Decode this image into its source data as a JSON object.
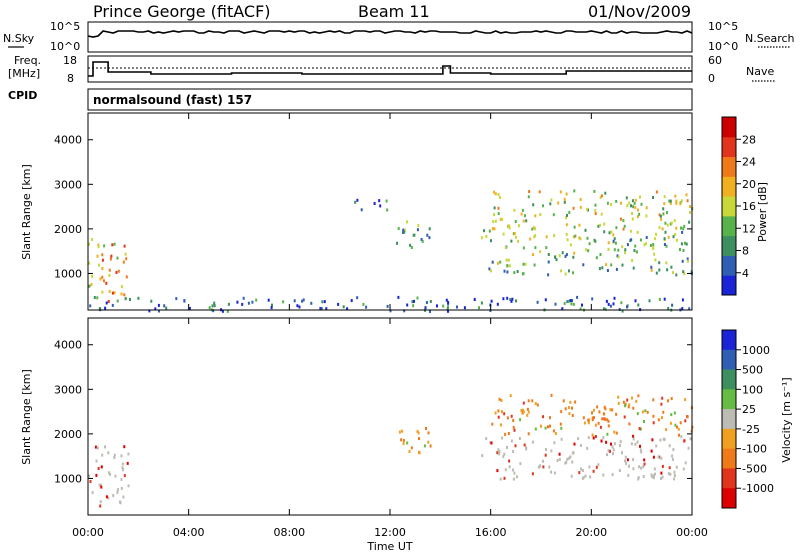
{
  "header": {
    "station": "Prince George (fitACF)",
    "beam": "Beam 11",
    "date": "01/Nov/2009"
  },
  "panel_labels": {
    "nsky": "N.Sky",
    "nsearch": "N.Search",
    "freq": "Freq.",
    "freq_unit": "[MHz]",
    "cpid": "CPID",
    "nave": "Nave",
    "cpid_value": "normalsound (fast) 157"
  },
  "top_ticks": {
    "nsky_left": [
      "10^5",
      "10^0"
    ],
    "nsearch_right": [
      "10^5",
      "10^0"
    ],
    "freq_left": [
      "18",
      "8"
    ],
    "nave_right": [
      "60",
      "0"
    ]
  },
  "colors": {
    "power_scale": [
      "#1a24d6",
      "#2f5fb3",
      "#3d8f5f",
      "#57b24c",
      "#c8d838",
      "#f0b020",
      "#f07a1a",
      "#e2341c",
      "#cc0000"
    ],
    "velocity_scale": [
      "#1a24d6",
      "#2f5fb3",
      "#3d8f5f",
      "#66bb44",
      "#bcbcb4",
      "#f0a020",
      "#f07a1a",
      "#e2341c",
      "#dd0000"
    ]
  },
  "chart_data": [
    {
      "type": "heatmap",
      "title": "Power",
      "xlabel": "",
      "ylabel": "Slant Range [km]",
      "x_ticks": [
        "00:00",
        "04:00",
        "08:00",
        "12:00",
        "16:00",
        "20:00",
        "00:00"
      ],
      "y_ticks": [
        1000,
        2000,
        3000,
        4000
      ],
      "ylim": [
        180,
        4600
      ],
      "xlim_hours": [
        0,
        24
      ],
      "colorbar": {
        "label": "Power [dB]",
        "ticks": [
          4,
          8,
          12,
          16,
          20,
          24,
          28
        ]
      },
      "regions": [
        {
          "t0": 0.0,
          "t1": 1.6,
          "r0": 400,
          "r1": 1800,
          "level": 24
        },
        {
          "t0": 10.5,
          "t1": 12.0,
          "r0": 2400,
          "r1": 2700,
          "level": 8
        },
        {
          "t0": 12.2,
          "t1": 13.6,
          "r0": 1500,
          "r1": 2200,
          "level": 12
        },
        {
          "t0": 15.6,
          "t1": 24.0,
          "r0": 1000,
          "r1": 2000,
          "level": 16
        },
        {
          "t0": 16.0,
          "t1": 24.0,
          "r0": 2000,
          "r1": 2900,
          "level": 20
        },
        {
          "t0": 0.0,
          "t1": 24.0,
          "r0": 180,
          "r1": 500,
          "level": 8
        }
      ]
    },
    {
      "type": "heatmap",
      "title": "Velocity",
      "xlabel": "Time UT",
      "ylabel": "Slant Range [km]",
      "x_ticks": [
        "00:00",
        "04:00",
        "08:00",
        "12:00",
        "16:00",
        "20:00",
        "00:00"
      ],
      "y_ticks": [
        1000,
        2000,
        3000,
        4000
      ],
      "ylim": [
        180,
        4600
      ],
      "xlim_hours": [
        0,
        24
      ],
      "colorbar": {
        "label": "Velocity [m s⁻¹]",
        "ticks": [
          1000,
          500,
          100,
          25,
          -25,
          -100,
          -500,
          -1000
        ]
      },
      "regions": [
        {
          "t0": 0.0,
          "t1": 1.6,
          "r0": 400,
          "r1": 1800,
          "level": 0
        },
        {
          "t0": 12.2,
          "t1": 13.6,
          "r0": 1500,
          "r1": 2200,
          "level": -300
        },
        {
          "t0": 15.6,
          "t1": 24.0,
          "r0": 1000,
          "r1": 2000,
          "level": 0
        },
        {
          "t0": 16.0,
          "t1": 24.0,
          "r0": 2000,
          "r1": 2900,
          "level": -300
        }
      ]
    }
  ]
}
